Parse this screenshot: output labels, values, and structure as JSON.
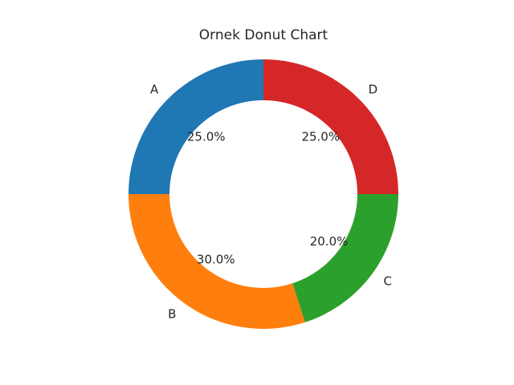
{
  "chart_data": {
    "type": "pie",
    "variant": "donut",
    "title": "Ornek Donut Chart",
    "categories": [
      "A",
      "B",
      "C",
      "D"
    ],
    "values": [
      25.0,
      30.0,
      20.0,
      25.0
    ],
    "percent_labels": [
      "25.0%",
      "30.0%",
      "20.0%",
      "25.0%"
    ],
    "colors": [
      "#1f77b4",
      "#ff7f0e",
      "#2ca02c",
      "#d62728"
    ],
    "start_angle_deg": 90,
    "direction": "counterclockwise",
    "legend": "none",
    "grid": false
  }
}
